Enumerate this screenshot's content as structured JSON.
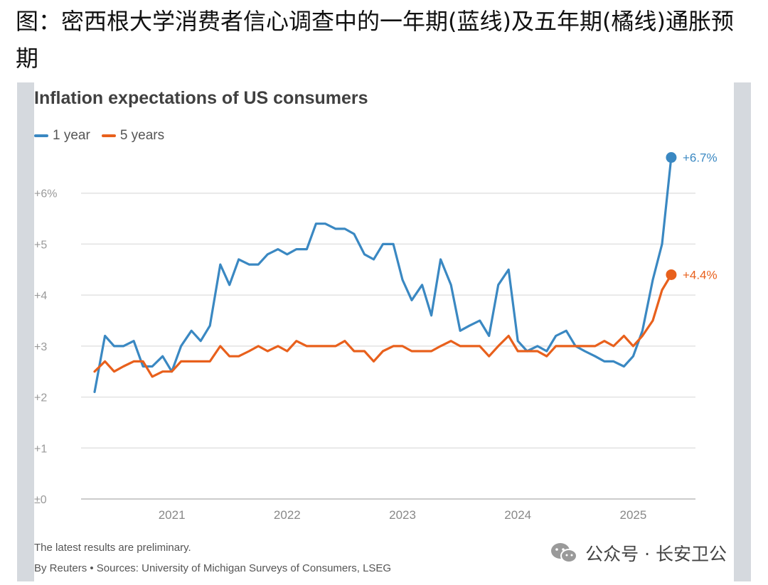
{
  "caption": "图：密西根大学消费者信心调查中的一年期(蓝线)及五年期(橘线)通胀预期",
  "chart_data": {
    "type": "line",
    "title": "Inflation expectations of US consumers",
    "xlabel": "",
    "ylabel": "",
    "ylim": [
      0,
      7
    ],
    "xlim": [
      2020.25,
      2025.54
    ],
    "y_ticks": [
      0,
      1,
      2,
      3,
      4,
      5,
      6
    ],
    "y_tick_labels": [
      "±0",
      "+1",
      "+2",
      "+3",
      "+4",
      "+5",
      "+6%"
    ],
    "x_ticks": [
      2021,
      2022,
      2023,
      2024,
      2025
    ],
    "x_tick_labels": [
      "2021",
      "2022",
      "2023",
      "2024",
      "2025"
    ],
    "grid": true,
    "legend_position": "top-left",
    "series": [
      {
        "name": "1 year",
        "color": "#3a88c2",
        "end_label": "+6.7%",
        "x": [
          2020.33,
          2020.42,
          2020.5,
          2020.58,
          2020.67,
          2020.75,
          2020.83,
          2020.92,
          2021.0,
          2021.08,
          2021.17,
          2021.25,
          2021.33,
          2021.42,
          2021.5,
          2021.58,
          2021.67,
          2021.75,
          2021.83,
          2021.92,
          2022.0,
          2022.08,
          2022.17,
          2022.25,
          2022.33,
          2022.42,
          2022.5,
          2022.58,
          2022.67,
          2022.75,
          2022.83,
          2022.92,
          2023.0,
          2023.08,
          2023.17,
          2023.25,
          2023.33,
          2023.42,
          2023.5,
          2023.58,
          2023.67,
          2023.75,
          2023.83,
          2023.92,
          2024.0,
          2024.08,
          2024.17,
          2024.25,
          2024.33,
          2024.42,
          2024.5,
          2024.58,
          2024.67,
          2024.75,
          2024.83,
          2024.92,
          2025.0,
          2025.08,
          2025.17,
          2025.25,
          2025.33
        ],
        "values": [
          2.1,
          3.2,
          3.0,
          3.0,
          3.1,
          2.6,
          2.6,
          2.8,
          2.5,
          3.0,
          3.3,
          3.1,
          3.4,
          4.6,
          4.2,
          4.7,
          4.6,
          4.6,
          4.8,
          4.9,
          4.8,
          4.9,
          4.9,
          5.4,
          5.4,
          5.3,
          5.3,
          5.2,
          4.8,
          4.7,
          5.0,
          5.0,
          4.3,
          3.9,
          4.2,
          3.6,
          4.7,
          4.2,
          3.3,
          3.4,
          3.5,
          3.2,
          4.2,
          4.5,
          3.1,
          2.9,
          3.0,
          2.9,
          3.2,
          3.3,
          3.0,
          2.9,
          2.8,
          2.7,
          2.7,
          2.6,
          2.8,
          3.3,
          4.3,
          5.0,
          6.7
        ]
      },
      {
        "name": "5 years",
        "color": "#e8601c",
        "end_label": "+4.4%",
        "x": [
          2020.33,
          2020.42,
          2020.5,
          2020.58,
          2020.67,
          2020.75,
          2020.83,
          2020.92,
          2021.0,
          2021.08,
          2021.17,
          2021.25,
          2021.33,
          2021.42,
          2021.5,
          2021.58,
          2021.67,
          2021.75,
          2021.83,
          2021.92,
          2022.0,
          2022.08,
          2022.17,
          2022.25,
          2022.33,
          2022.42,
          2022.5,
          2022.58,
          2022.67,
          2022.75,
          2022.83,
          2022.92,
          2023.0,
          2023.08,
          2023.17,
          2023.25,
          2023.33,
          2023.42,
          2023.5,
          2023.58,
          2023.67,
          2023.75,
          2023.83,
          2023.92,
          2024.0,
          2024.08,
          2024.17,
          2024.25,
          2024.33,
          2024.42,
          2024.5,
          2024.58,
          2024.67,
          2024.75,
          2024.83,
          2024.92,
          2025.0,
          2025.08,
          2025.17,
          2025.25,
          2025.33
        ],
        "values": [
          2.5,
          2.7,
          2.5,
          2.6,
          2.7,
          2.7,
          2.4,
          2.5,
          2.5,
          2.7,
          2.7,
          2.7,
          2.7,
          3.0,
          2.8,
          2.8,
          2.9,
          3.0,
          2.9,
          3.0,
          2.9,
          3.1,
          3.0,
          3.0,
          3.0,
          3.0,
          3.1,
          2.9,
          2.9,
          2.7,
          2.9,
          3.0,
          3.0,
          2.9,
          2.9,
          2.9,
          3.0,
          3.1,
          3.0,
          3.0,
          3.0,
          2.8,
          3.0,
          3.2,
          2.9,
          2.9,
          2.9,
          2.8,
          3.0,
          3.0,
          3.0,
          3.0,
          3.0,
          3.1,
          3.0,
          3.2,
          3.0,
          3.2,
          3.5,
          4.1,
          4.4
        ]
      }
    ]
  },
  "footnotes": {
    "note": "The latest results are preliminary.",
    "source": "By Reuters • Sources: University of Michigan Surveys of Consumers, LSEG"
  },
  "watermark": {
    "text": "公众号 · 长安卫公",
    "icon": "wechat-icon"
  }
}
